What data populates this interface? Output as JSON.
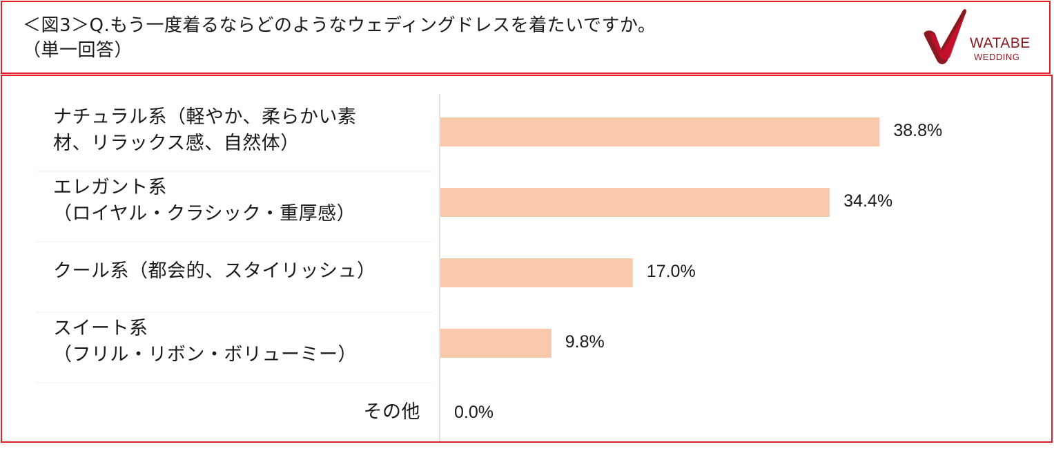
{
  "header": {
    "title": "＜図3＞Q.もう一度着るならどのようなウェディングドレスを着たいですか。\n（単一回答）",
    "logo": {
      "line1": "WATABE",
      "line2": "WEDDING",
      "icon": "watabe-check-logo-icon",
      "color": "#8a1a1f",
      "accent": "#c8102e"
    }
  },
  "colors": {
    "frame": "#e31e24",
    "bar": "#f8c9ab",
    "axis": "#d9d9d9"
  },
  "chart_data": {
    "type": "bar",
    "orientation": "horizontal",
    "title": "",
    "xlabel": "",
    "ylabel": "",
    "xlim": [
      0,
      45
    ],
    "grid": false,
    "categories": [
      "ナチュラル系（軽やか、柔らかい素\n材、リラックス感、自然体）",
      "エレガント系\n（ロイヤル・クラシック・重厚感）",
      "クール系（都会的、スタイリッシュ）",
      "スイート系\n（フリル・リボン・ボリューミー）",
      "その他"
    ],
    "values": [
      38.8,
      34.4,
      17.0,
      9.8,
      0.0
    ],
    "value_labels": [
      "38.8%",
      "34.4%",
      "17.0%",
      "9.8%",
      "0.0%"
    ]
  }
}
